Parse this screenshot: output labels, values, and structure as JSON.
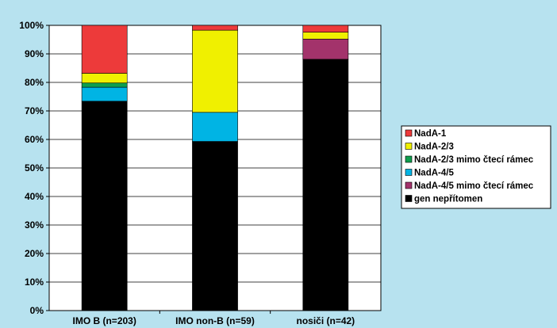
{
  "chart_data": {
    "type": "bar",
    "stacked": true,
    "percent": true,
    "categories": [
      "IMO B (n=203)",
      "IMO non-B (n=59)",
      "nosiči (n=42)"
    ],
    "series": [
      {
        "name": "gen nepřítomen",
        "color": "#000000",
        "values": [
          73.4,
          59.3,
          88.1
        ]
      },
      {
        "name": "NadA-4/5 mimo čtecí rámec",
        "color": "#a3336b",
        "values": [
          0,
          0,
          7.1
        ]
      },
      {
        "name": "NadA-4/5",
        "color": "#00b4e4",
        "values": [
          4.9,
          10.2,
          0
        ]
      },
      {
        "name": "NadA-2/3 mimo čtecí rámec",
        "color": "#0e9e4e",
        "values": [
          1.5,
          0,
          0
        ]
      },
      {
        "name": "NadA-2/3",
        "color": "#f0f000",
        "values": [
          3.4,
          28.8,
          2.4
        ]
      },
      {
        "name": "NadA-1",
        "color": "#ed3a3a",
        "values": [
          16.8,
          1.7,
          2.4
        ]
      }
    ],
    "legend_order": [
      "NadA-1",
      "NadA-2/3",
      "NadA-2/3 mimo čtecí rámec",
      "NadA-4/5",
      "NadA-4/5 mimo čtecí rámec",
      "gen nepřítomen"
    ],
    "yticks": [
      "0%",
      "10%",
      "20%",
      "30%",
      "40%",
      "50%",
      "60%",
      "70%",
      "80%",
      "90%",
      "100%"
    ],
    "ylim": [
      0,
      100
    ],
    "grid": "horizontal",
    "legend_position": "right"
  }
}
